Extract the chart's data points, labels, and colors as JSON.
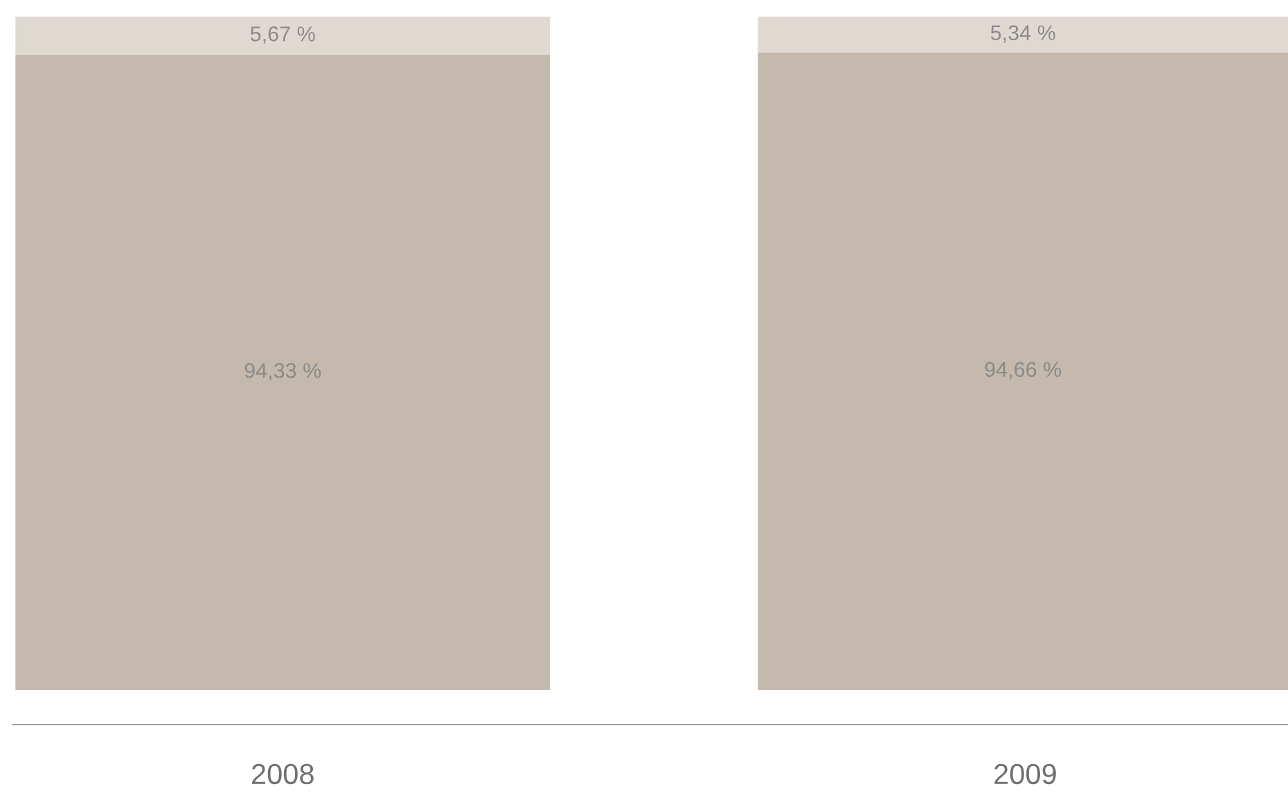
{
  "chart_data": {
    "type": "bar",
    "stacked": true,
    "categories": [
      "2008",
      "2009"
    ],
    "series": [
      {
        "color": "#c4b9ac",
        "values": [
          94.33,
          94.66
        ],
        "value_labels": [
          "94,33 %",
          "94,66 %"
        ]
      },
      {
        "color": "#e0d9d2",
        "values": [
          5.67,
          5.34
        ],
        "value_labels": [
          "5,67 %",
          "5,34 %"
        ]
      }
    ],
    "ylim": [
      0,
      100
    ],
    "grid": false
  }
}
